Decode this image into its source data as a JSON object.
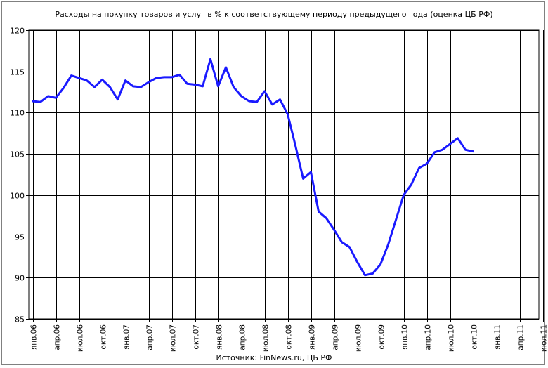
{
  "title": "Расходы на покупку товаров и услуг в % к соответствующему периоду предыдущего года (оценка ЦБ РФ)",
  "source": "Источник: FinNews.ru, ЦБ РФ",
  "chart_data": {
    "type": "line",
    "title": "Расходы на покупку товаров и услуг в % к соответствующему периоду предыдущего года (оценка ЦБ РФ)",
    "xlabel": "",
    "ylabel": "",
    "ylim": [
      85,
      120
    ],
    "yticks": [
      85,
      90,
      95,
      100,
      105,
      110,
      115,
      120
    ],
    "grid": true,
    "color": "#1a1aff",
    "xtick_labels": [
      "янв.06",
      "апр.06",
      "июл.06",
      "окт.06",
      "янв.07",
      "апр.07",
      "июл.07",
      "окт.07",
      "янв.08",
      "апр.08",
      "июл.08",
      "окт.08",
      "янв.09",
      "апр.09",
      "июл.09",
      "окт.09",
      "янв.10",
      "апр.10",
      "июл.10",
      "окт.10",
      "янв.11",
      "апр.11",
      "июл.11"
    ],
    "series": [
      {
        "x": [
          "янв.06",
          "фев.06",
          "мар.06",
          "апр.06",
          "май.06",
          "июн.06",
          "июл.06",
          "авг.06",
          "сен.06",
          "окт.06",
          "ноя.06",
          "дек.06",
          "янв.07",
          "фев.07",
          "мар.07",
          "апр.07",
          "май.07",
          "июн.07",
          "июл.07",
          "авг.07",
          "сен.07",
          "окт.07",
          "ноя.07",
          "дек.07",
          "янв.08",
          "фев.08",
          "мар.08",
          "апр.08",
          "май.08",
          "июн.08",
          "июл.08",
          "авг.08",
          "сен.08",
          "окт.08",
          "ноя.08",
          "дек.08",
          "янв.09",
          "фев.09",
          "мар.09",
          "апр.09",
          "май.09",
          "июн.09",
          "июл.09",
          "авг.09",
          "сен.09",
          "окт.09",
          "ноя.09",
          "дек.09",
          "янв.10",
          "фев.10",
          "мар.10",
          "апр.10",
          "май.10",
          "июн.10",
          "июл.10",
          "авг.10",
          "сен.10",
          "окт.10"
        ],
        "values": [
          111.4,
          111.3,
          112.0,
          111.8,
          113.0,
          114.5,
          114.2,
          113.9,
          113.1,
          114.0,
          113.1,
          111.6,
          113.9,
          113.2,
          113.1,
          113.7,
          114.2,
          114.3,
          114.3,
          114.6,
          113.5,
          113.4,
          113.2,
          116.5,
          113.2,
          115.5,
          113.1,
          112.0,
          111.4,
          111.3,
          112.6,
          111.0,
          111.6,
          109.8,
          106.0,
          102.0,
          102.8,
          98.0,
          97.2,
          95.8,
          94.3,
          93.7,
          91.9,
          90.3,
          90.5,
          91.6,
          94.0,
          97.0,
          100.0,
          101.3,
          103.3,
          103.8,
          105.2,
          105.5,
          106.2,
          106.9,
          105.5,
          105.3
        ]
      }
    ]
  }
}
